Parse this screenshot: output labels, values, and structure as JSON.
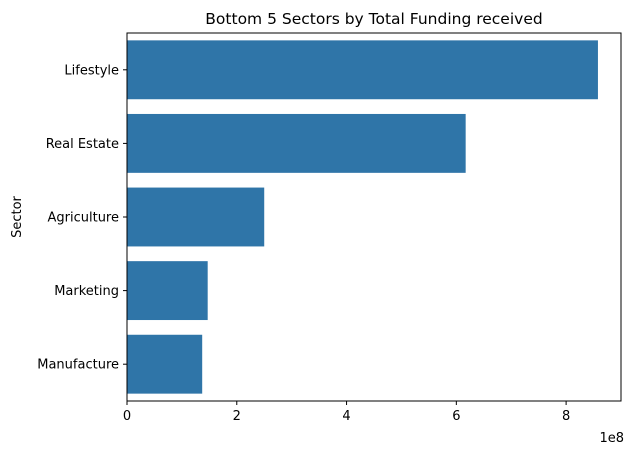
{
  "chart_data": {
    "type": "bar",
    "orientation": "horizontal",
    "title": "Bottom 5 Sectors by Total Funding received",
    "xlabel": "",
    "ylabel": "Sector",
    "x_offset_text": "1e8",
    "x_scale_exponent": 8,
    "categories": [
      "Lifestyle",
      "Real Estate",
      "Agriculture",
      "Marketing",
      "Manufacture"
    ],
    "values": [
      858000000,
      617000000,
      250000000,
      147000000,
      137000000
    ],
    "xlim": [
      0,
      900000000
    ],
    "xticks": [
      0,
      2,
      4,
      6,
      8
    ],
    "bar_color": "#2f75a8",
    "grid": false,
    "legend": "none"
  }
}
